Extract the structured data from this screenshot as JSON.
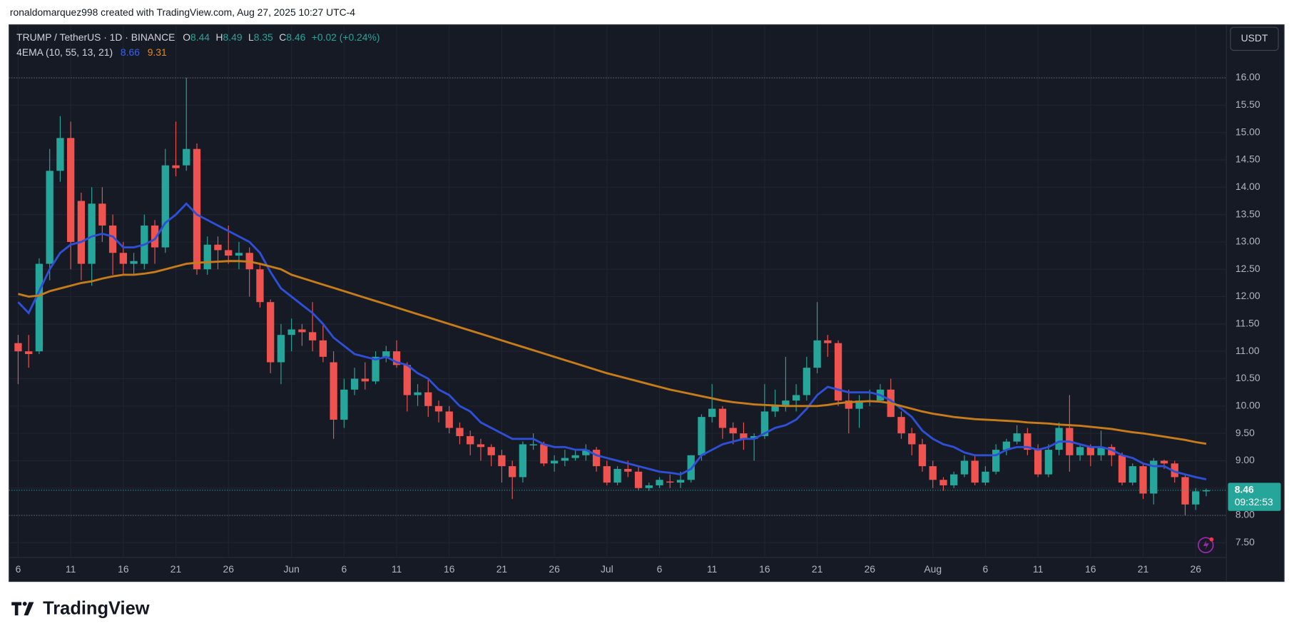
{
  "header": "ronaldomarquez998 created with TradingView.com, Aug 27, 2025 10:27 UTC-4",
  "footer": "TradingView",
  "chart_data": {
    "type": "candlestick",
    "title": "TRUMP / TetherUS · 1D · BINANCE",
    "ohlc_labels": [
      "O",
      "H",
      "L",
      "C"
    ],
    "change": "+0.02 (+0.24%)",
    "axis_unit": "USDT",
    "countdown": "09:32:53",
    "up_color": "#26a69a",
    "down_color": "#ef5350",
    "grid": true,
    "categories": [
      "6",
      null,
      null,
      null,
      null,
      "11",
      null,
      null,
      null,
      null,
      "16",
      null,
      null,
      null,
      null,
      "21",
      null,
      null,
      null,
      null,
      "26",
      null,
      null,
      null,
      null,
      null,
      "Jun",
      null,
      null,
      null,
      null,
      "6",
      null,
      null,
      null,
      null,
      "11",
      null,
      null,
      null,
      null,
      "16",
      null,
      null,
      null,
      null,
      "21",
      null,
      null,
      null,
      null,
      "26",
      null,
      null,
      null,
      null,
      "Jul",
      null,
      null,
      null,
      null,
      "6",
      null,
      null,
      null,
      null,
      "11",
      null,
      null,
      null,
      null,
      "16",
      null,
      null,
      null,
      null,
      "21",
      null,
      null,
      null,
      null,
      "26",
      null,
      null,
      null,
      null,
      null,
      "Aug",
      null,
      null,
      null,
      null,
      "6",
      null,
      null,
      null,
      null,
      "11",
      null,
      null,
      null,
      null,
      "16",
      null,
      null,
      null,
      null,
      "21",
      null,
      null,
      null,
      null,
      "26",
      null
    ],
    "open": [
      11.15,
      11.0,
      11.0,
      12.6,
      14.3,
      14.9,
      13.75,
      12.6,
      13.7,
      13.3,
      12.8,
      12.6,
      12.6,
      13.3,
      12.9,
      14.4,
      14.4,
      14.7,
      12.5,
      12.95,
      12.85,
      12.75,
      12.8,
      12.5,
      11.9,
      10.8,
      11.3,
      11.4,
      11.35,
      11.2,
      10.8,
      9.75,
      10.3,
      10.5,
      10.45,
      10.9,
      11.0,
      10.75,
      10.2,
      10.25,
      10.0,
      9.9,
      9.6,
      9.45,
      9.3,
      9.25,
      9.1,
      8.9,
      8.7,
      9.28,
      9.3,
      8.95,
      9.0,
      9.05,
      9.1,
      9.2,
      8.9,
      8.6,
      8.85,
      8.8,
      8.5,
      8.55,
      8.62,
      8.6,
      8.65,
      9.1,
      9.8,
      9.95,
      9.6,
      9.5,
      9.4,
      9.45,
      9.9,
      10.0,
      10.1,
      10.2,
      10.7,
      11.2,
      11.15,
      10.1,
      9.95,
      10.08,
      10.1,
      10.3,
      9.8,
      9.5,
      9.3,
      8.9,
      8.65,
      8.55,
      8.75,
      9.0,
      8.6,
      8.8,
      9.2,
      9.35,
      9.5,
      9.2,
      8.75,
      9.2,
      9.6,
      9.1,
      9.25,
      9.1,
      9.25,
      9.1,
      8.6,
      8.9,
      8.4,
      9.0,
      8.95,
      8.7,
      8.2,
      8.44
    ],
    "high": [
      11.3,
      11.3,
      12.7,
      14.7,
      15.3,
      15.2,
      13.9,
      14.0,
      14.0,
      13.5,
      13.0,
      12.8,
      13.5,
      13.4,
      14.7,
      15.2,
      16.0,
      14.8,
      13.1,
      13.1,
      13.3,
      13.0,
      12.9,
      12.6,
      11.95,
      11.5,
      11.6,
      11.5,
      11.9,
      11.5,
      11.0,
      10.5,
      10.7,
      10.8,
      11.0,
      11.1,
      11.2,
      10.8,
      10.4,
      10.5,
      10.1,
      10.0,
      9.7,
      9.55,
      9.4,
      9.3,
      9.2,
      9.0,
      9.35,
      9.5,
      9.35,
      9.1,
      9.2,
      9.2,
      9.3,
      9.25,
      9.0,
      8.9,
      9.0,
      8.9,
      8.6,
      8.7,
      8.75,
      8.8,
      9.1,
      9.85,
      10.4,
      10.0,
      9.7,
      9.7,
      9.5,
      10.4,
      10.3,
      10.9,
      10.4,
      10.9,
      11.9,
      11.3,
      11.2,
      10.3,
      10.2,
      10.3,
      10.4,
      10.5,
      9.9,
      9.6,
      9.4,
      9.0,
      8.7,
      8.8,
      9.1,
      9.1,
      8.9,
      9.3,
      9.4,
      9.65,
      9.6,
      9.3,
      9.3,
      9.7,
      10.2,
      9.3,
      9.3,
      9.55,
      9.3,
      9.15,
      8.95,
      8.95,
      9.05,
      9.02,
      9.0,
      8.75,
      8.5,
      8.49
    ],
    "low": [
      10.4,
      10.7,
      10.95,
      12.3,
      14.1,
      12.5,
      12.3,
      12.2,
      13.0,
      12.4,
      12.4,
      12.4,
      12.5,
      12.6,
      12.8,
      14.2,
      14.3,
      12.4,
      12.4,
      12.5,
      12.6,
      12.5,
      12.0,
      11.8,
      10.6,
      10.4,
      11.0,
      11.1,
      11.0,
      10.8,
      9.4,
      9.6,
      10.2,
      10.3,
      10.4,
      10.8,
      10.7,
      9.9,
      10.0,
      9.8,
      9.7,
      9.5,
      9.3,
      9.1,
      9.0,
      8.9,
      8.6,
      8.3,
      8.6,
      9.2,
      8.9,
      8.8,
      8.9,
      9.0,
      9.0,
      8.8,
      8.55,
      8.55,
      8.7,
      8.45,
      8.45,
      8.5,
      8.5,
      8.5,
      8.6,
      9.0,
      9.7,
      9.4,
      9.3,
      9.2,
      9.0,
      9.4,
      9.8,
      9.9,
      9.9,
      10.1,
      10.6,
      10.9,
      10.0,
      9.5,
      9.6,
      10.0,
      10.1,
      9.8,
      9.4,
      9.1,
      8.8,
      8.5,
      8.45,
      8.5,
      8.7,
      8.55,
      8.55,
      8.75,
      9.1,
      9.3,
      9.1,
      8.7,
      8.7,
      9.1,
      8.8,
      9.0,
      8.9,
      9.0,
      8.9,
      8.55,
      8.55,
      8.3,
      8.2,
      8.85,
      8.6,
      8.0,
      8.1,
      8.35
    ],
    "close": [
      11.0,
      10.95,
      12.6,
      14.3,
      14.9,
      13.0,
      12.6,
      13.7,
      13.3,
      12.8,
      12.6,
      12.65,
      13.3,
      12.9,
      14.4,
      14.35,
      14.7,
      12.5,
      12.95,
      12.85,
      12.75,
      12.8,
      12.5,
      11.9,
      10.8,
      11.3,
      11.4,
      11.35,
      11.2,
      10.9,
      9.75,
      10.3,
      10.5,
      10.45,
      10.9,
      11.0,
      10.75,
      10.2,
      10.25,
      10.0,
      9.9,
      9.6,
      9.45,
      9.3,
      9.25,
      9.1,
      8.9,
      8.7,
      9.3,
      9.3,
      8.95,
      9.0,
      9.05,
      9.1,
      9.2,
      8.9,
      8.6,
      8.85,
      8.8,
      8.5,
      8.55,
      8.65,
      8.6,
      8.65,
      9.1,
      9.8,
      9.95,
      9.6,
      9.5,
      9.4,
      9.45,
      9.9,
      10.0,
      10.1,
      10.2,
      10.7,
      11.2,
      11.15,
      10.1,
      9.95,
      10.1,
      10.1,
      10.3,
      9.8,
      9.5,
      9.3,
      8.9,
      8.65,
      8.55,
      8.75,
      9.0,
      8.6,
      8.8,
      9.2,
      9.35,
      9.5,
      9.2,
      8.75,
      9.2,
      9.6,
      9.1,
      9.25,
      9.1,
      9.25,
      9.1,
      8.6,
      8.9,
      8.4,
      9.0,
      8.95,
      8.7,
      8.2,
      8.44,
      8.46
    ],
    "ema": {
      "name": "4EMA (10, 55, 13, 21)",
      "series": [
        {
          "color": "#2e4fd6",
          "values": [
            11.9,
            11.7,
            12.1,
            12.5,
            12.8,
            12.95,
            13.0,
            13.1,
            13.15,
            13.1,
            12.9,
            12.9,
            12.95,
            13.05,
            13.35,
            13.5,
            13.7,
            13.5,
            13.4,
            13.3,
            13.2,
            13.1,
            13.0,
            12.8,
            12.45,
            12.15,
            12.0,
            11.85,
            11.7,
            11.5,
            11.25,
            11.1,
            10.95,
            10.9,
            10.85,
            10.9,
            10.8,
            10.75,
            10.6,
            10.5,
            10.3,
            10.2,
            10.0,
            9.9,
            9.7,
            9.6,
            9.5,
            9.4,
            9.4,
            9.4,
            9.3,
            9.25,
            9.25,
            9.2,
            9.2,
            9.1,
            9.05,
            9.0,
            8.95,
            8.9,
            8.85,
            8.8,
            8.78,
            8.75,
            8.85,
            9.1,
            9.2,
            9.3,
            9.35,
            9.4,
            9.4,
            9.5,
            9.6,
            9.65,
            9.75,
            9.95,
            10.2,
            10.35,
            10.3,
            10.25,
            10.25,
            10.25,
            10.2,
            10.1,
            9.95,
            9.8,
            9.55,
            9.4,
            9.3,
            9.25,
            9.15,
            9.1,
            9.1,
            9.1,
            9.2,
            9.25,
            9.25,
            9.2,
            9.25,
            9.35,
            9.35,
            9.3,
            9.25,
            9.25,
            9.2,
            9.1,
            9.05,
            8.95,
            8.9,
            8.9,
            8.8,
            8.75,
            8.7,
            8.66
          ]
        },
        {
          "color": "#c77c1a",
          "values": [
            12.05,
            12.0,
            12.02,
            12.1,
            12.15,
            12.2,
            12.25,
            12.28,
            12.33,
            12.37,
            12.4,
            12.4,
            12.42,
            12.45,
            12.5,
            12.55,
            12.6,
            12.62,
            12.63,
            12.64,
            12.65,
            12.65,
            12.64,
            12.6,
            12.55,
            12.5,
            12.4,
            12.34,
            12.28,
            12.22,
            12.16,
            12.1,
            12.04,
            11.98,
            11.92,
            11.86,
            11.8,
            11.74,
            11.68,
            11.62,
            11.56,
            11.5,
            11.44,
            11.38,
            11.32,
            11.26,
            11.2,
            11.14,
            11.08,
            11.02,
            10.96,
            10.9,
            10.84,
            10.78,
            10.72,
            10.66,
            10.6,
            10.55,
            10.5,
            10.45,
            10.4,
            10.35,
            10.3,
            10.26,
            10.22,
            10.18,
            10.14,
            10.1,
            10.07,
            10.05,
            10.03,
            10.02,
            10.01,
            10.0,
            10.0,
            10.0,
            10.0,
            10.02,
            10.05,
            10.07,
            10.08,
            10.09,
            10.08,
            10.05,
            10.0,
            9.95,
            9.9,
            9.86,
            9.83,
            9.8,
            9.78,
            9.76,
            9.75,
            9.74,
            9.73,
            9.72,
            9.7,
            9.69,
            9.68,
            9.66,
            9.65,
            9.64,
            9.62,
            9.6,
            9.58,
            9.55,
            9.52,
            9.5,
            9.47,
            9.44,
            9.41,
            9.38,
            9.34,
            9.31
          ]
        }
      ]
    },
    "ylim": [
      7.23,
      16.97
    ],
    "yticks": [
      {
        "value": 7.5,
        "label": "7.50"
      },
      {
        "value": 8,
        "label": "8.00"
      },
      {
        "value": 8.5,
        "label": "8.50"
      },
      {
        "value": 9,
        "label": "9.00"
      },
      {
        "value": 9.5,
        "label": "9.50"
      },
      {
        "value": 10,
        "label": "10.00"
      },
      {
        "value": 10.5,
        "label": "10.50"
      },
      {
        "value": 11,
        "label": "11.00"
      },
      {
        "value": 11.5,
        "label": "11.50"
      },
      {
        "value": 12,
        "label": "12.00"
      },
      {
        "value": 12.5,
        "label": "12.50"
      },
      {
        "value": 13,
        "label": "13.00"
      },
      {
        "value": 13.5,
        "label": "13.50"
      },
      {
        "value": 14,
        "label": "14.00"
      },
      {
        "value": 14.5,
        "label": "14.50"
      },
      {
        "value": 15,
        "label": "15.00"
      },
      {
        "value": 15.5,
        "label": "15.50"
      },
      {
        "value": 16,
        "label": "16.00"
      }
    ]
  }
}
